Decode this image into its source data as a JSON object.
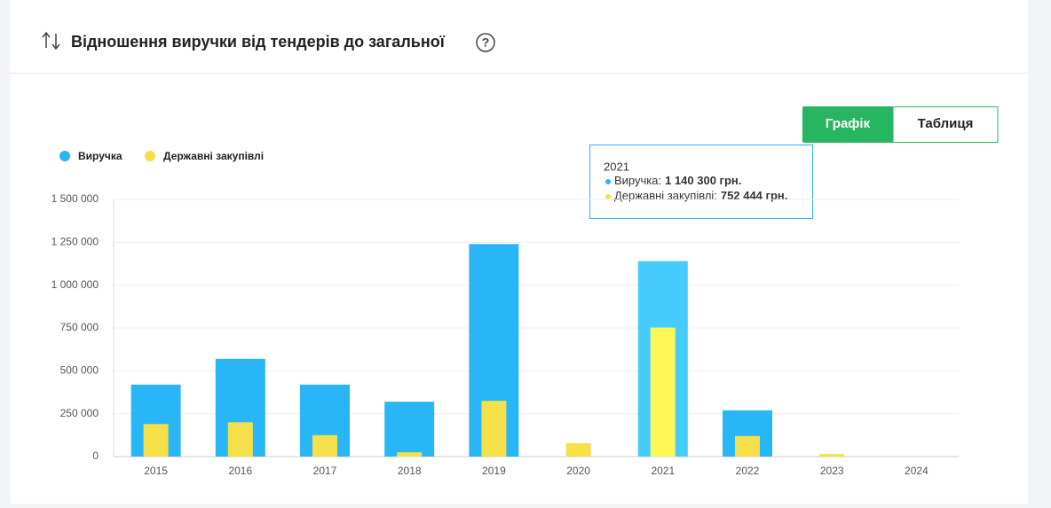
{
  "header": {
    "title": "Відношення виручки від тендерів до загальної"
  },
  "buttons": [
    "Графік",
    "Таблиця"
  ],
  "tooltip": {
    "title": "2021",
    "lines": [
      {
        "name": "Виручка:",
        "value": "1 140 300 грн."
      },
      {
        "name": "Державні закупівлі:",
        "value": "752 444 грн."
      }
    ]
  },
  "chart_data": {
    "type": "bar",
    "categories": [
      "2015",
      "2016",
      "2017",
      "2018",
      "2019",
      "2020",
      "2021",
      "2022",
      "2023",
      "2024"
    ],
    "series": [
      {
        "name": "Виручка",
        "color": "#29b6f6",
        "values": [
          420000,
          570000,
          420000,
          320000,
          1240000,
          0,
          1140300,
          270000,
          0,
          0
        ]
      },
      {
        "name": "Державні закупівлі",
        "color": "#f5e04a",
        "values": [
          190000,
          200000,
          125000,
          25000,
          325000,
          78000,
          752444,
          120000,
          15000,
          0
        ]
      }
    ],
    "ylim": [
      0,
      1500000
    ],
    "yticks": [
      0,
      {
        "value": 250000,
        "label": "250 000"
      },
      {
        "value": 500000,
        "label": "500 000"
      },
      {
        "value": 750000,
        "label": "750 000"
      },
      {
        "value": 1000000,
        "label": "1 000 000"
      },
      {
        "value": 1250000,
        "label": "1 250 000"
      },
      {
        "value": 1500000,
        "label": "1 500 000"
      }
    ],
    "grid": true
  }
}
